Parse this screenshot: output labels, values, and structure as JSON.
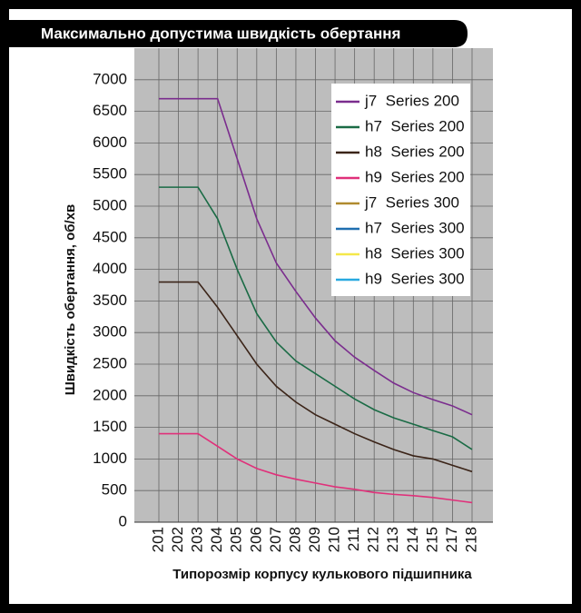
{
  "chart_data": {
    "type": "line",
    "title": "Максимально допустима швидкість обертання",
    "x_label": "Типорозмір корпусу кулькового підшипника",
    "y_label": "Швидкість обертання, об/хв",
    "categories": [
      "201",
      "202",
      "203",
      "204",
      "205",
      "206",
      "207",
      "208",
      "209",
      "210",
      "211",
      "212",
      "213",
      "214",
      "215",
      "217",
      "218"
    ],
    "ylim": [
      0,
      7500
    ],
    "yticks": [
      0,
      500,
      1000,
      1500,
      2000,
      2500,
      3000,
      3500,
      4000,
      4500,
      5000,
      5500,
      6000,
      6500,
      7000
    ],
    "grid": true,
    "legend": "upper right",
    "series": [
      {
        "name": "j7  Series 200",
        "color": "#7b2d8e",
        "values": [
          6700,
          6700,
          6700,
          6700,
          5750,
          4800,
          4100,
          3650,
          3230,
          2870,
          2610,
          2400,
          2200,
          2050,
          1940,
          1840,
          1700
        ]
      },
      {
        "name": "h7  Series 200",
        "color": "#1a6b45",
        "values": [
          5300,
          5300,
          5300,
          4800,
          4000,
          3300,
          2850,
          2550,
          2350,
          2150,
          1950,
          1780,
          1650,
          1550,
          1450,
          1350,
          1150
        ]
      },
      {
        "name": "h8  Series 200",
        "color": "#3b2418",
        "values": [
          3800,
          3800,
          3800,
          3400,
          2950,
          2500,
          2150,
          1900,
          1700,
          1550,
          1400,
          1270,
          1150,
          1050,
          1000,
          900,
          800
        ]
      },
      {
        "name": "h9  Series 200",
        "color": "#e0307a",
        "values": [
          1400,
          1400,
          1400,
          1200,
          1000,
          850,
          750,
          680,
          620,
          560,
          520,
          470,
          440,
          420,
          390,
          350,
          310
        ]
      },
      {
        "name": "j7  Series 300",
        "color": "#b08a2e",
        "values": [
          null,
          null,
          null,
          null,
          null,
          null,
          null,
          null,
          null,
          null,
          null,
          null,
          null,
          null,
          null,
          null,
          null
        ]
      },
      {
        "name": "h7  Series 300",
        "color": "#1f6fb0",
        "values": [
          null,
          null,
          null,
          null,
          null,
          null,
          null,
          null,
          null,
          null,
          null,
          null,
          null,
          null,
          null,
          null,
          null
        ]
      },
      {
        "name": "h8  Series 300",
        "color": "#f5e84a",
        "values": [
          null,
          null,
          null,
          null,
          null,
          null,
          null,
          null,
          null,
          null,
          null,
          null,
          null,
          null,
          null,
          null,
          null
        ]
      },
      {
        "name": "h9  Series 300",
        "color": "#29a9e0",
        "values": [
          null,
          null,
          null,
          null,
          null,
          null,
          null,
          null,
          null,
          null,
          null,
          null,
          null,
          null,
          null,
          null,
          null
        ]
      }
    ]
  }
}
